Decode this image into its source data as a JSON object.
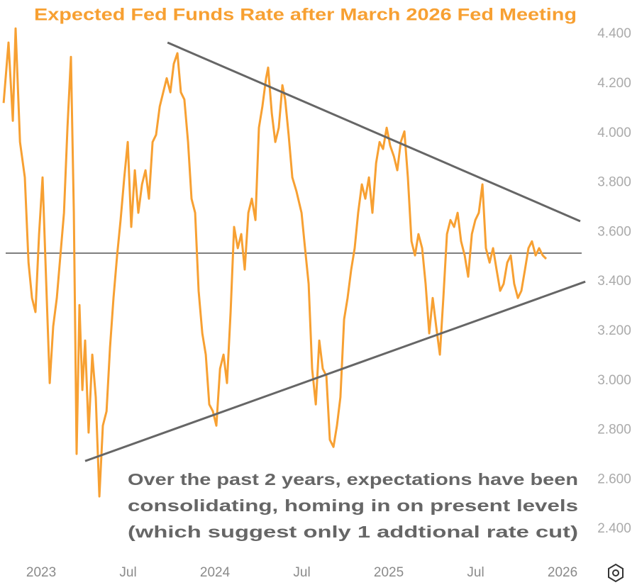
{
  "chart_data": {
    "type": "line",
    "title": "Expected Fed Funds Rate after March 2026 Fed Meeting",
    "annotation": [
      "Over the past 2 years, expectations have been",
      "consolidating, homing in on present levels",
      "(which suggest only 1 addtional rate cut)"
    ],
    "xlim": [
      2022.763,
      2026.11
    ],
    "ylim": [
      2.303,
      4.538
    ],
    "xticks": [
      2023,
      {
        "value": 2023.5,
        "label": "Jul"
      },
      2024,
      {
        "value": 2024.5,
        "label": "Jul"
      },
      2025,
      {
        "value": 2025.5,
        "label": "Jul"
      },
      2026
    ],
    "yticks": [
      {
        "value": 4.4,
        "label": "4.400"
      },
      {
        "value": 4.2,
        "label": "4.200"
      },
      {
        "value": 4.0,
        "label": "4.000"
      },
      {
        "value": 3.8,
        "label": "3.800"
      },
      {
        "value": 3.6,
        "label": "3.600"
      },
      {
        "value": 3.4,
        "label": "3.400"
      },
      {
        "value": 3.2,
        "label": "3.200"
      },
      {
        "value": 3.0,
        "label": "3.000"
      },
      {
        "value": 2.8,
        "label": "2.800"
      },
      {
        "value": 2.6,
        "label": "2.600"
      },
      {
        "value": 2.4,
        "label": "2.400"
      }
    ],
    "reference_line": 3.515,
    "trend_lines": [
      {
        "x": [
          2023.727,
          2026.102
        ],
        "y": [
          4.366,
          3.644
        ]
      },
      {
        "x": [
          2023.253,
          2026.131
        ],
        "y": [
          2.675,
          3.4
        ]
      }
    ],
    "series": [
      {
        "color": "#f7a032",
        "x": [
          2022.784,
          2022.812,
          2022.837,
          2022.853,
          2022.878,
          2022.906,
          2022.927,
          2022.947,
          2022.967,
          2022.988,
          2023.008,
          2023.029,
          2023.049,
          2023.069,
          2023.09,
          2023.131,
          2023.151,
          2023.171,
          2023.188,
          2023.204,
          2023.22,
          2023.237,
          2023.253,
          2023.273,
          2023.294,
          2023.314,
          2023.335,
          2023.355,
          2023.376,
          2023.396,
          2023.416,
          2023.437,
          2023.457,
          2023.478,
          2023.498,
          2023.518,
          2023.539,
          2023.559,
          2023.58,
          2023.6,
          2023.62,
          2023.641,
          2023.661,
          2023.682,
          2023.702,
          2023.722,
          2023.743,
          2023.763,
          2023.784,
          2023.804,
          2023.824,
          2023.845,
          2023.865,
          2023.886,
          2023.906,
          2023.927,
          2023.947,
          2023.967,
          2023.988,
          2024.008,
          2024.029,
          2024.049,
          2024.069,
          2024.09,
          2024.11,
          2024.131,
          2024.151,
          2024.171,
          2024.192,
          2024.212,
          2024.233,
          2024.253,
          2024.273,
          2024.294,
          2024.306,
          2024.327,
          2024.347,
          2024.367,
          2024.388,
          2024.404,
          2024.424,
          2024.445,
          2024.469,
          2024.498,
          2024.518,
          2024.539,
          2024.559,
          2024.58,
          2024.6,
          2024.62,
          2024.641,
          2024.661,
          2024.682,
          2024.702,
          2024.722,
          2024.743,
          2024.763,
          2024.784,
          2024.804,
          2024.824,
          2024.845,
          2024.865,
          2024.886,
          2024.906,
          2024.927,
          2024.947,
          2024.967,
          2024.988,
          2025.008,
          2025.029,
          2025.049,
          2025.069,
          2025.09,
          2025.11,
          2025.131,
          2025.151,
          2025.171,
          2025.192,
          2025.212,
          2025.233,
          2025.253,
          2025.273,
          2025.294,
          2025.314,
          2025.335,
          2025.355,
          2025.376,
          2025.396,
          2025.416,
          2025.437,
          2025.457,
          2025.478,
          2025.498,
          2025.518,
          2025.539,
          2025.559,
          2025.58,
          2025.6,
          2025.62,
          2025.641,
          2025.661,
          2025.682,
          2025.702,
          2025.722,
          2025.743,
          2025.763,
          2025.784,
          2025.804,
          2025.824,
          2025.845,
          2025.865,
          2025.886,
          2025.906
        ],
        "values": [
          4.122,
          4.366,
          4.05,
          4.423,
          3.964,
          3.821,
          3.477,
          3.334,
          3.277,
          3.592,
          3.821,
          3.391,
          2.99,
          3.219,
          3.334,
          3.678,
          4.022,
          4.308,
          3.678,
          2.704,
          3.305,
          2.962,
          3.162,
          2.79,
          3.105,
          2.933,
          2.532,
          2.818,
          2.876,
          3.134,
          3.334,
          3.506,
          3.649,
          3.821,
          3.964,
          3.621,
          3.85,
          3.678,
          3.793,
          3.85,
          3.735,
          3.964,
          3.993,
          4.108,
          4.165,
          4.222,
          4.165,
          4.28,
          4.323,
          4.165,
          4.136,
          3.964,
          3.735,
          3.678,
          3.363,
          3.191,
          3.105,
          2.904,
          2.876,
          2.818,
          3.048,
          3.105,
          2.99,
          3.277,
          3.621,
          3.535,
          3.592,
          3.449,
          3.678,
          3.735,
          3.649,
          4.022,
          4.108,
          4.222,
          4.265,
          4.079,
          3.964,
          4.022,
          4.194,
          4.136,
          3.993,
          3.821,
          3.764,
          3.678,
          3.535,
          3.391,
          3.048,
          2.904,
          3.162,
          3.048,
          3.019,
          2.761,
          2.732,
          2.818,
          2.933,
          3.248,
          3.334,
          3.449,
          3.535,
          3.678,
          3.793,
          3.735,
          3.821,
          3.678,
          3.879,
          3.964,
          3.936,
          4.022,
          3.95,
          3.907,
          3.85,
          3.964,
          4.007,
          3.821,
          3.563,
          3.506,
          3.592,
          3.535,
          3.391,
          3.191,
          3.334,
          3.219,
          3.105,
          3.334,
          3.592,
          3.649,
          3.621,
          3.678,
          3.563,
          3.506,
          3.42,
          3.592,
          3.649,
          3.678,
          3.793,
          3.535,
          3.477,
          3.535,
          3.449,
          3.363,
          3.391,
          3.477,
          3.506,
          3.391,
          3.334,
          3.363,
          3.449,
          3.535,
          3.563,
          3.506,
          3.535,
          3.506,
          3.492
        ]
      }
    ]
  }
}
